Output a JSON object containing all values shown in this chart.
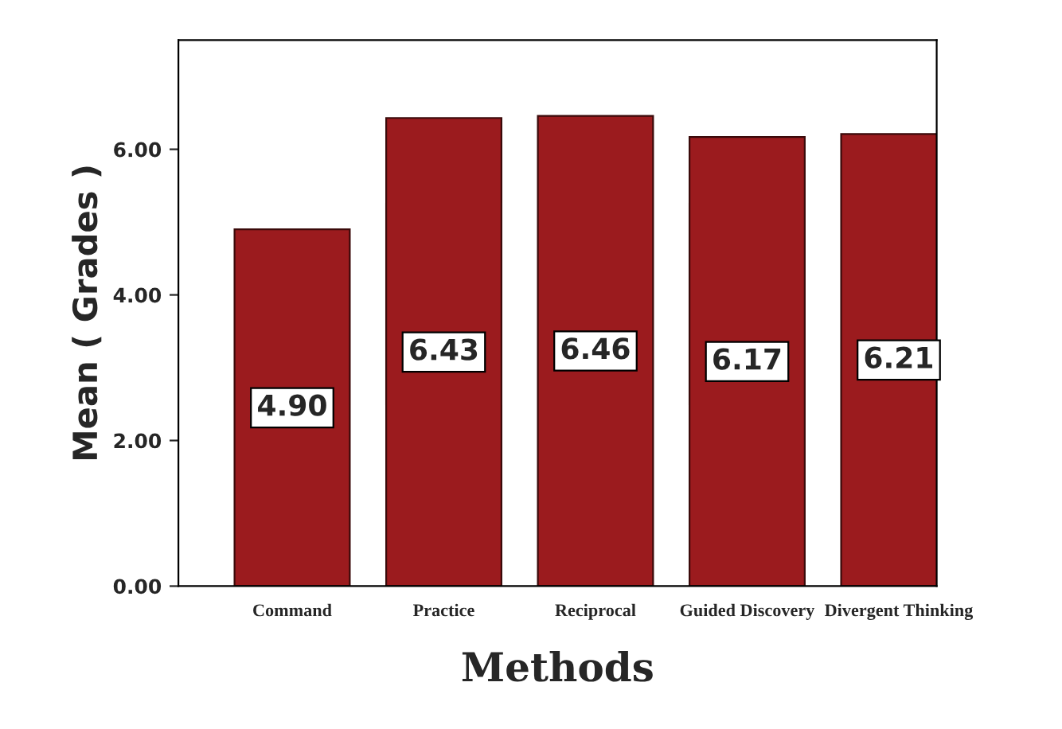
{
  "chart_data": {
    "type": "bar",
    "xlabel": "Methods",
    "ylabel": "Mean ( Grades )",
    "categories": [
      "Command",
      "Practice",
      "Reciprocal",
      "Guided Discovery",
      "Divergent Thinking"
    ],
    "values": [
      4.9,
      6.43,
      6.46,
      6.17,
      6.21
    ],
    "value_labels": [
      "4.90",
      "6.43",
      "6.46",
      "6.17",
      "6.21"
    ],
    "color": "#9b1b1e",
    "ylim": [
      0,
      7.5
    ],
    "yticks": [
      {
        "value": 0,
        "label": "0.00"
      },
      {
        "value": 2,
        "label": "2.00"
      },
      {
        "value": 4,
        "label": "4.00"
      },
      {
        "value": 6,
        "label": "6.00"
      }
    ],
    "grid": false,
    "legend": false
  }
}
